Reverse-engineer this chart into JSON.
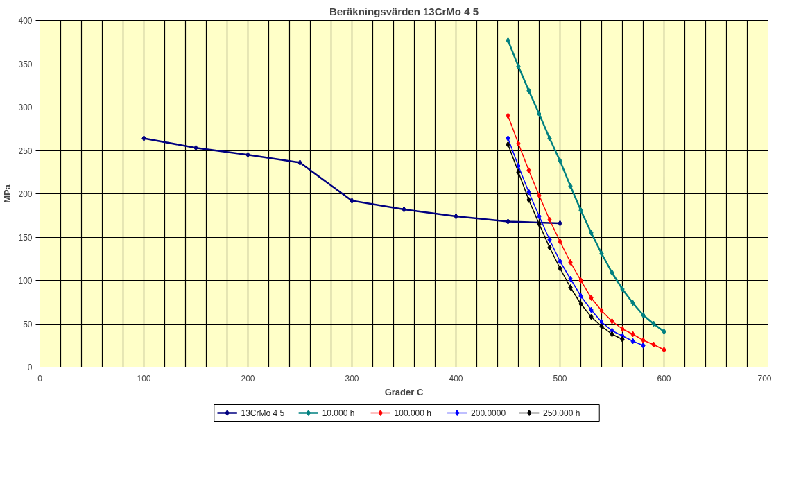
{
  "chart_data": {
    "type": "line",
    "title": "Beräkningsvärden 13CrMo 4 5",
    "xlabel": "Grader C",
    "ylabel": "MPa",
    "xlim": [
      0,
      700
    ],
    "xticks": [
      0,
      100,
      200,
      300,
      400,
      500,
      600,
      700
    ],
    "ylim": [
      0,
      400
    ],
    "yticks": [
      0,
      50,
      100,
      150,
      200,
      250,
      300,
      350,
      400
    ],
    "grid": true,
    "legend": "bottom",
    "marker": "diamond",
    "line_style": "solid",
    "series": [
      {
        "name": "13CrMo 4 5",
        "color": "#000080",
        "x": [
          100,
          150,
          200,
          250,
          300,
          350,
          400,
          450,
          500
        ],
        "values": [
          264,
          253,
          245,
          236,
          192,
          182,
          174,
          168,
          166
        ]
      },
      {
        "name": "10.000 h",
        "color": "#008080",
        "x": [
          450,
          460,
          470,
          480,
          490,
          500,
          510,
          520,
          530,
          540,
          550,
          560,
          570,
          580,
          590,
          600
        ],
        "values": [
          377,
          347,
          319,
          292,
          264,
          238,
          209,
          181,
          155,
          131,
          109,
          90,
          74,
          60,
          50,
          41
        ]
      },
      {
        "name": "100.000 h",
        "color": "#ff0000",
        "x": [
          450,
          460,
          470,
          480,
          490,
          500,
          510,
          520,
          530,
          540,
          550,
          560,
          570,
          580,
          590,
          600
        ],
        "values": [
          290,
          258,
          227,
          198,
          170,
          145,
          121,
          100,
          80,
          65,
          53,
          44,
          38,
          31,
          26,
          20
        ]
      },
      {
        "name": "200.0000",
        "color": "#0000ff",
        "x": [
          450,
          460,
          470,
          480,
          490,
          500,
          510,
          520,
          530,
          540,
          550,
          560,
          570,
          580
        ],
        "values": [
          264,
          232,
          202,
          174,
          147,
          122,
          102,
          82,
          66,
          52,
          42,
          36,
          30,
          25
        ]
      },
      {
        "name": "250.000 h",
        "color": "#000000",
        "x": [
          450,
          460,
          470,
          480,
          490,
          500,
          510,
          520,
          530,
          540,
          550,
          560
        ],
        "values": [
          257,
          225,
          193,
          165,
          138,
          114,
          92,
          73,
          58,
          47,
          38,
          32
        ]
      }
    ]
  }
}
